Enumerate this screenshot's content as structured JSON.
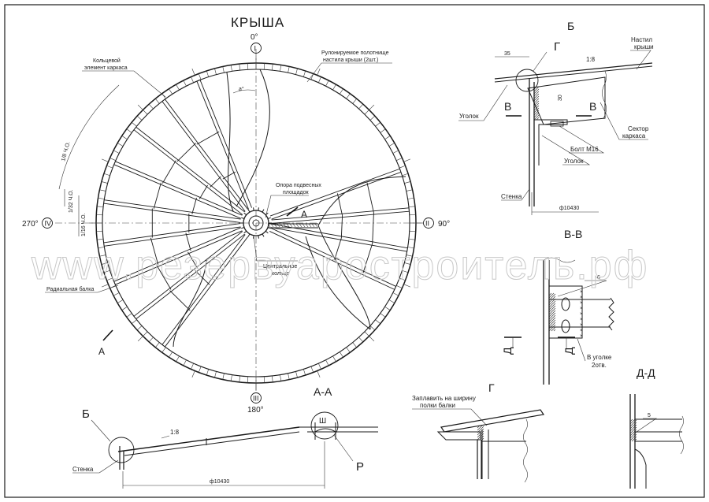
{
  "watermark": "www.резервуаростроитель.рф",
  "plan": {
    "title": "КРЫША",
    "axis_labels": {
      "deg0": "0°",
      "deg90": "90°",
      "deg180": "180°",
      "deg270": "270°"
    },
    "axis_marks": {
      "top": "I",
      "right": "II",
      "bottom": "III",
      "left": "IV"
    },
    "callouts": {
      "ring_element_1": "Кольцевой",
      "ring_element_2": "элемент каркаса",
      "rolled_sheet_1": "Рулонируемое полотнище",
      "rolled_sheet_2": "настила крыши (2шт.)",
      "support_1": "Опора подвесных",
      "support_2": "площадок",
      "central_ring_1": "Центральное",
      "central_ring_2": "кольцо",
      "radial_beam": "Радиальная балка",
      "angle_a": "a°"
    },
    "dims": {
      "d1": "1/8 Ч.О.",
      "d2": "1/32 Ч.О.",
      "d3": "1/16 Ч.О."
    },
    "section_marks": {
      "a1": "А",
      "a2": "А"
    }
  },
  "section_aa": {
    "title": "А-А",
    "callout_b": "Б",
    "callout_r": "Р",
    "callout_sh": "Ш",
    "wall": "Стенка",
    "slope": "1:8",
    "diameter": "ф10430"
  },
  "detail_b": {
    "title": "Б",
    "callout_g": "Г",
    "deck_1": "Настил",
    "deck_2": "крыши",
    "slope": "1:8",
    "dim_35": "35",
    "dim_30": "30",
    "angle_1": "Уголок",
    "sector_1": "Сектор",
    "sector_2": "каркаса",
    "bolt": "Болт М16",
    "angle_2": "Уголок",
    "wall": "Стенка",
    "diameter": "ф10430",
    "mark_v1": "В",
    "mark_v2": "В"
  },
  "section_vv": {
    "title": "В-В",
    "weld": "6",
    "mark_d1": "Д",
    "mark_d2": "Д",
    "note_1": "В уголке",
    "note_2": "2отв."
  },
  "detail_g": {
    "title": "Г",
    "note_1": "Заплавить на ширину",
    "note_2": "полки балки"
  },
  "section_dd": {
    "title": "Д-Д",
    "weld": "5"
  }
}
